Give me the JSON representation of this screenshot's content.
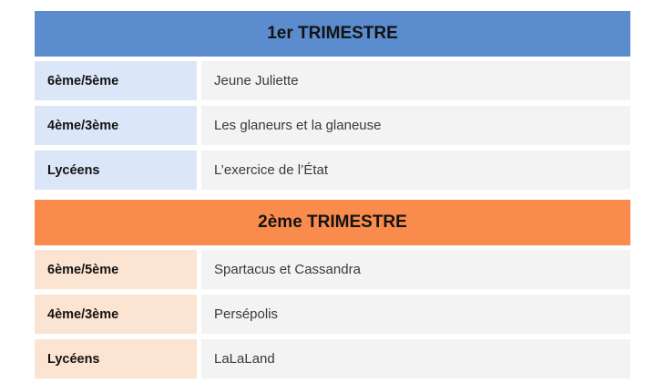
{
  "colors": {
    "trimester1_header_bg": "#5b8cce",
    "trimester1_label_bg": "#dbe6f8",
    "trimester2_header_bg": "#f98c4d",
    "trimester2_label_bg": "#fce4d2",
    "content_cell_bg": "#f3f3f3",
    "header_text": "#131313",
    "film_text": "#3a3a3a"
  },
  "sections": [
    {
      "title": "1er TRIMESTRE",
      "rows": [
        {
          "level": "6ème/5ème",
          "film": "Jeune Juliette"
        },
        {
          "level": "4ème/3ème",
          "film": "Les glaneurs et la glaneuse"
        },
        {
          "level": "Lycéens",
          "film": "L’exercice de l’État"
        }
      ]
    },
    {
      "title": "2ème TRIMESTRE",
      "rows": [
        {
          "level": "6ème/5ème",
          "film": "Spartacus et Cassandra"
        },
        {
          "level": "4ème/3ème",
          "film": "Persépolis"
        },
        {
          "level": "Lycéens",
          "film": "LaLaLand"
        }
      ]
    }
  ]
}
